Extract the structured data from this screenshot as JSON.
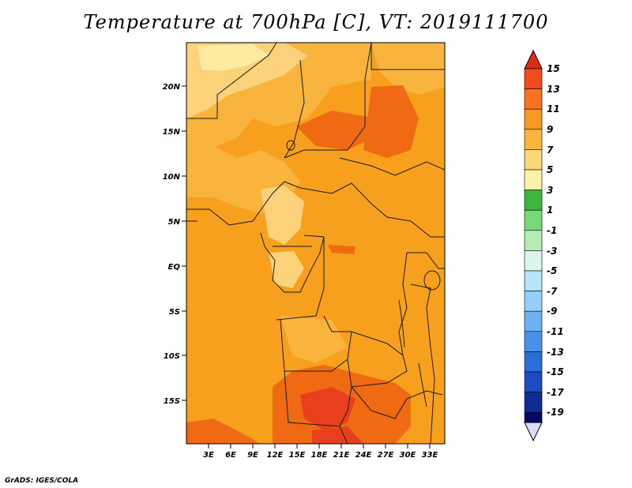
{
  "title": "Temperature at 700hPa [C], VT: 2019111700",
  "footer": "GrADS: IGES/COLA",
  "map": {
    "lat_labels": [
      "20N",
      "15N",
      "10N",
      "5N",
      "EQ",
      "5S",
      "10S",
      "15S"
    ],
    "lon_labels": [
      "3E",
      "6E",
      "9E",
      "12E",
      "15E",
      "18E",
      "21E",
      "24E",
      "27E",
      "30E",
      "33E"
    ],
    "colors": {
      "base": "#f7a01e",
      "warm": "#f8b43c",
      "light": "#fbd27a",
      "hot": "#f06a14",
      "hotter": "#e8401c",
      "palest": "#fdeba2"
    }
  },
  "colorbar": {
    "labels": [
      "15",
      "13",
      "11",
      "9",
      "7",
      "5",
      "3",
      "1",
      "-1",
      "-3",
      "-5",
      "-7",
      "-9",
      "-11",
      "-13",
      "-15",
      "-17",
      "-19"
    ],
    "colors": [
      "#e02a14",
      "#f04b1c",
      "#f47220",
      "#f89a22",
      "#f9b43e",
      "#fbd77a",
      "#fdf1a8",
      "#3cb63c",
      "#78d878",
      "#b4ecb4",
      "#dcf6ee",
      "#b8e4fa",
      "#96d0fa",
      "#6eb2f4",
      "#4a90ea",
      "#2c6ed8",
      "#1c4cc0",
      "#0c2c96",
      "#080866",
      "#dcdcf8"
    ]
  }
}
